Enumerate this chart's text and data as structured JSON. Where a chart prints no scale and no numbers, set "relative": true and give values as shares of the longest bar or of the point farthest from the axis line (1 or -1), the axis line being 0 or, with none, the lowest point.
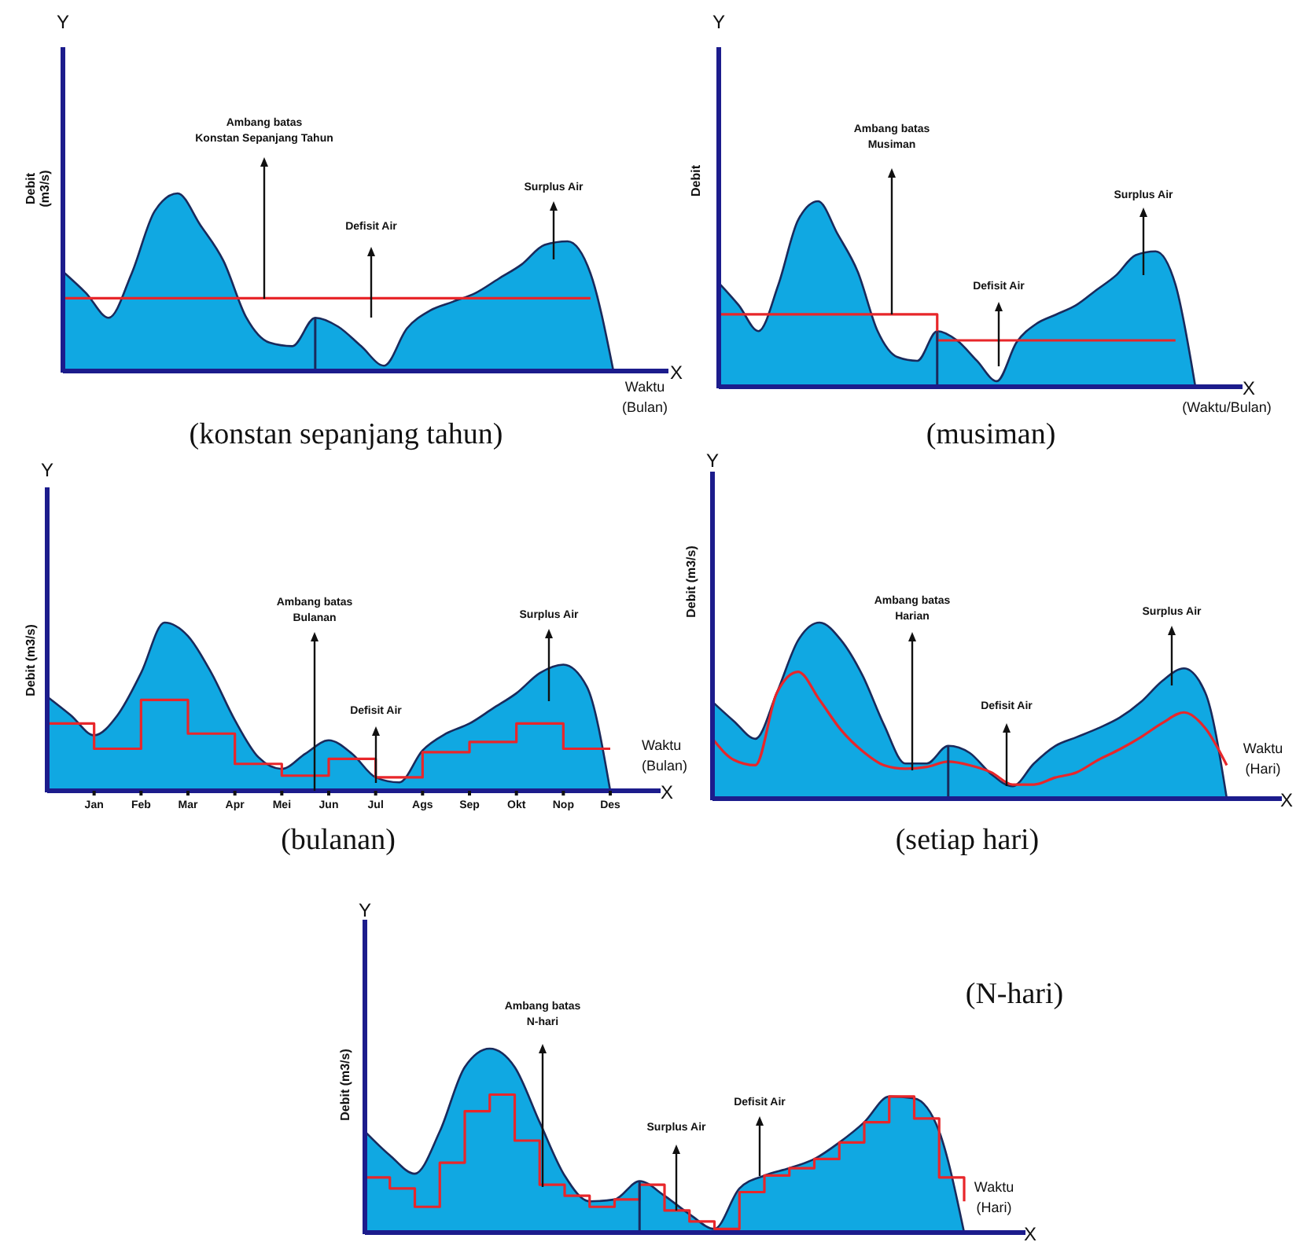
{
  "chart_data": [
    {
      "type": "area",
      "title": "(konstan sepanjang tahun)",
      "xlabel": "Waktu\n(Bulan)",
      "ylabel": "Debit\n(m3/s)",
      "relative": true,
      "categories": [
        null,
        null,
        null,
        null,
        null,
        null,
        null,
        null,
        null,
        null,
        null,
        null,
        null,
        null,
        null,
        null,
        null,
        null,
        null,
        null,
        null,
        null,
        null,
        null,
        null
      ],
      "series": [
        {
          "type": "area",
          "color": "#10a8e2",
          "values": [
            0.56,
            0.44,
            0.3,
            0.55,
            0.9,
            1.0,
            0.82,
            0.62,
            0.3,
            0.16,
            0.14,
            0.3,
            0.25,
            0.14,
            0.03,
            0.24,
            0.34,
            0.39,
            0.44,
            0.52,
            0.6,
            0.71,
            0.73,
            0.55,
            0
          ]
        },
        {
          "type": "line",
          "color": "#e8262a",
          "values": [
            0.41,
            0.41,
            0.41,
            0.41,
            0.41,
            0.41,
            0.41,
            0.41,
            0.41,
            0.41,
            0.41,
            0.41,
            0.41,
            0.41,
            0.41,
            0.41,
            0.41,
            0.41,
            0.41,
            0.41,
            0.41,
            0.41,
            0.41,
            0.41,
            null
          ]
        }
      ],
      "annotations": [
        "Ambang batas\nKonstan Sepanjang Tahun",
        "Defisit Air",
        "Surplus Air",
        "Y",
        "X"
      ]
    },
    {
      "type": "area",
      "title": "(musiman)",
      "xlabel": "(Waktu/Bulan)",
      "ylabel": "Debit",
      "relative": true,
      "categories": [
        null,
        null,
        null,
        null,
        null,
        null,
        null,
        null,
        null,
        null,
        null,
        null,
        null,
        null,
        null,
        null,
        null,
        null,
        null,
        null,
        null,
        null,
        null,
        null,
        null
      ],
      "series": [
        {
          "type": "area",
          "color": "#10a8e2",
          "values": [
            0.56,
            0.44,
            0.3,
            0.55,
            0.9,
            1.0,
            0.82,
            0.62,
            0.3,
            0.16,
            0.14,
            0.3,
            0.25,
            0.14,
            0.03,
            0.24,
            0.34,
            0.39,
            0.44,
            0.52,
            0.6,
            0.71,
            0.73,
            0.55,
            0
          ]
        },
        {
          "type": "step",
          "color": "#e8262a",
          "values": [
            0.39,
            0.39,
            0.39,
            0.39,
            0.39,
            0.39,
            0.39,
            0.39,
            0.39,
            0.39,
            0.39,
            0.25,
            0.25,
            0.25,
            0.25,
            0.25,
            0.25,
            0.25,
            0.25,
            0.25,
            0.25,
            0.25,
            0.25,
            0.25,
            null
          ]
        }
      ],
      "annotations": [
        "Ambang batas\nMusiman",
        "Defisit Air",
        "Surplus Air",
        "Y",
        "X"
      ]
    },
    {
      "type": "area",
      "title": "(bulanan)",
      "xlabel": "Waktu\n(Bulan)",
      "ylabel": "Debit (m3/s)",
      "relative": true,
      "categories": [
        null,
        null,
        "Jan",
        null,
        "Feb",
        null,
        "Mar",
        null,
        "Apr",
        null,
        "Mei",
        null,
        "Jun",
        null,
        "Jul",
        null,
        "Ags",
        null,
        "Sep",
        null,
        "Okt",
        null,
        "Nop",
        null,
        "Des"
      ],
      "series": [
        {
          "type": "area",
          "color": "#10a8e2",
          "values": [
            0.56,
            0.45,
            0.33,
            0.45,
            0.7,
            1.0,
            0.92,
            0.7,
            0.42,
            0.2,
            0.13,
            0.22,
            0.3,
            0.22,
            0.08,
            0.05,
            0.24,
            0.34,
            0.4,
            0.49,
            0.58,
            0.7,
            0.75,
            0.62,
            0
          ]
        },
        {
          "type": "step",
          "color": "#e8262a",
          "values": [
            0.4,
            0.4,
            0.25,
            0.25,
            0.54,
            0.54,
            0.34,
            0.34,
            0.16,
            0.16,
            0.09,
            0.09,
            0.19,
            0.19,
            0.08,
            0.08,
            0.23,
            0.23,
            0.29,
            0.29,
            0.4,
            0.4,
            0.25,
            0.25,
            0.25
          ]
        }
      ],
      "annotations": [
        "Ambang batas\nBulanan",
        "Defisit Air",
        "Surplus Air",
        "Y",
        "X"
      ]
    },
    {
      "type": "area",
      "title": "(setiap hari)",
      "xlabel": "Waktu\n(Hari)",
      "ylabel": "Debit (m3/s)",
      "relative": true,
      "categories": [
        null,
        null,
        null,
        null,
        null,
        null,
        null,
        null,
        null,
        null,
        null,
        null,
        null,
        null,
        null,
        null,
        null,
        null,
        null,
        null,
        null,
        null,
        null,
        null,
        null
      ],
      "series": [
        {
          "type": "area",
          "color": "#10a8e2",
          "values": [
            0.55,
            0.44,
            0.34,
            0.6,
            0.9,
            1.0,
            0.9,
            0.7,
            0.42,
            0.2,
            0.2,
            0.3,
            0.26,
            0.14,
            0.07,
            0.2,
            0.3,
            0.35,
            0.4,
            0.46,
            0.55,
            0.67,
            0.74,
            0.6,
            0
          ]
        },
        {
          "type": "line",
          "color": "#e8262a",
          "values": [
            0.34,
            0.22,
            0.19,
            0.6,
            0.72,
            0.56,
            0.39,
            0.27,
            0.19,
            0.17,
            0.18,
            0.21,
            0.19,
            0.15,
            0.08,
            0.08,
            0.12,
            0.15,
            0.22,
            0.28,
            0.35,
            0.43,
            0.49,
            0.4,
            0.19
          ]
        }
      ],
      "annotations": [
        "Ambang batas\nHarian",
        "Defisit Air",
        "Surplus Air",
        "Y",
        "X"
      ]
    },
    {
      "type": "area",
      "title": "(N-hari)",
      "xlabel": "Waktu\n(Hari)",
      "ylabel": "Debit (m3/s)",
      "relative": true,
      "categories": [
        null,
        null,
        null,
        null,
        null,
        null,
        null,
        null,
        null,
        null,
        null,
        null,
        null,
        null,
        null,
        null,
        null,
        null,
        null,
        null,
        null,
        null,
        null,
        null,
        null
      ],
      "series": [
        {
          "type": "area",
          "color": "#10a8e2",
          "values": [
            0.55,
            0.42,
            0.32,
            0.55,
            0.9,
            1.0,
            0.9,
            0.6,
            0.31,
            0.17,
            0.18,
            0.28,
            0.2,
            0.1,
            0.02,
            0.24,
            0.31,
            0.35,
            0.4,
            0.49,
            0.6,
            0.74,
            0.73,
            0.55,
            0
          ]
        },
        {
          "type": "step",
          "color": "#e8262a",
          "values": [
            0.3,
            0.24,
            0.14,
            0.38,
            0.66,
            0.75,
            0.5,
            0.26,
            0.2,
            0.14,
            0.18,
            0.26,
            0.12,
            0.06,
            0.02,
            0.22,
            0.31,
            0.35,
            0.4,
            0.49,
            0.6,
            0.74,
            0.62,
            0.3,
            0.17
          ]
        }
      ],
      "annotations": [
        "Ambang batas\nN-hari",
        "Surplus Air",
        "Defisit Air",
        "Y",
        "X"
      ]
    }
  ]
}
